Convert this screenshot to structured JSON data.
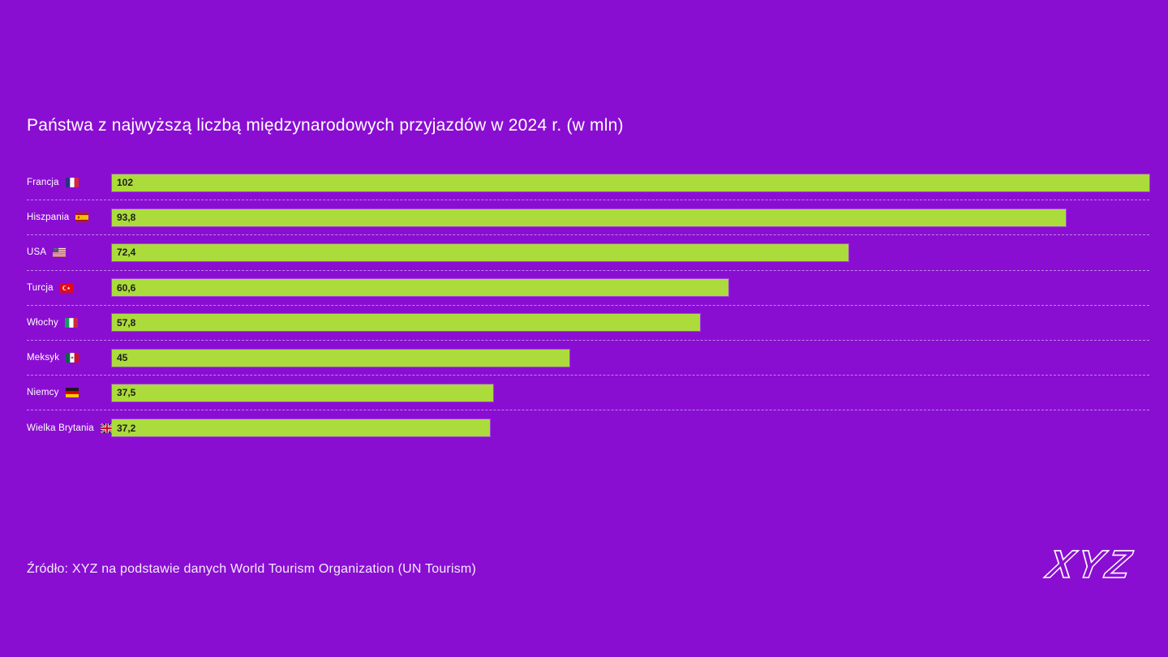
{
  "page": {
    "background_color": "#8A0ED2",
    "title": "Państwa z najwyższą liczbą międzynarodowych przyjazdów w 2024 r. (w mln)",
    "source": "Źródło: XYZ na podstawie danych World Tourism Organization (UN Tourism)",
    "logo_text": "XYZ"
  },
  "chart_data": {
    "type": "bar",
    "orientation": "horizontal",
    "title": "Państwa z najwyższą liczbą międzynarodowych przyjazdów w 2024 r. (w mln)",
    "categories": [
      "Francja",
      "Hiszpania",
      "USA",
      "Turcja",
      "Włochy",
      "Meksyk",
      "Niemcy",
      "Wielka Brytania"
    ],
    "values": [
      102,
      93.8,
      72.4,
      60.6,
      57.8,
      45,
      37.5,
      37.2
    ],
    "value_labels": [
      "102",
      "93,8",
      "72,4",
      "60,6",
      "57,8",
      "45",
      "37,5",
      "37,2"
    ],
    "flag_icons": [
      "flag-france-icon",
      "flag-spain-icon",
      "flag-usa-icon",
      "flag-turkey-icon",
      "flag-italy-icon",
      "flag-mexico-icon",
      "flag-germany-icon",
      "flag-uk-icon"
    ],
    "xlim": [
      0,
      102
    ],
    "xlabel": "",
    "ylabel": "",
    "grid": false,
    "legend": false,
    "bar_color": "#ABDC3B",
    "value_text_color": "#1E1E1E",
    "label_text_color": "#FFFFFF",
    "separator_color": "rgba(238,228,250,0.55)",
    "value_decimal_separator": ","
  }
}
